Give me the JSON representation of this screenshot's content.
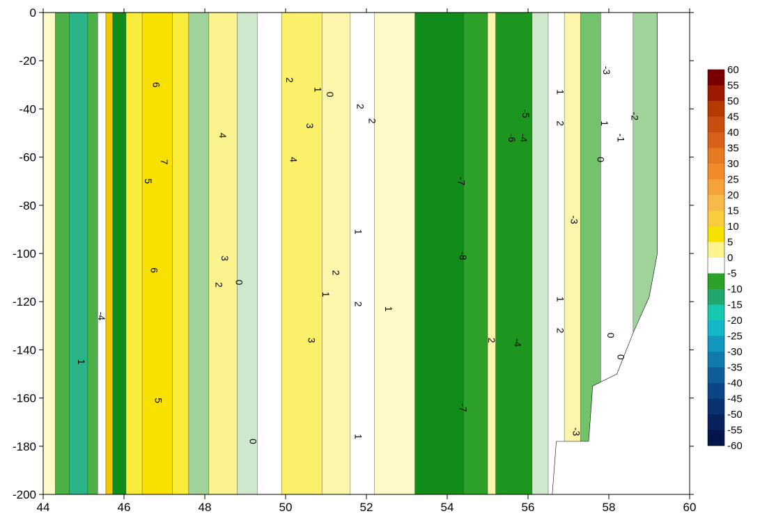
{
  "chart_data": {
    "type": "heatmap",
    "title": "",
    "xlabel": "",
    "ylabel": "",
    "xlim": [
      44,
      60
    ],
    "ylim": [
      -200,
      0
    ],
    "x_ticks": [
      44,
      46,
      48,
      50,
      52,
      54,
      56,
      58,
      60
    ],
    "y_ticks": [
      0,
      -20,
      -40,
      -60,
      -80,
      -100,
      -120,
      -140,
      -160,
      -180,
      -200
    ],
    "colorbar": {
      "levels": [
        60,
        55,
        50,
        45,
        40,
        35,
        30,
        25,
        20,
        15,
        10,
        5,
        0,
        -5,
        -10,
        -15,
        -20,
        -25,
        -30,
        -35,
        -40,
        -45,
        -50,
        -55,
        -60
      ],
      "range": [
        -60,
        60
      ]
    },
    "bands": [
      {
        "x0": 44.0,
        "x1": 44.3,
        "value": 1
      },
      {
        "x0": 44.3,
        "x1": 44.65,
        "value": -4
      },
      {
        "x0": 44.65,
        "x1": 45.1,
        "value": -10
      },
      {
        "x0": 45.1,
        "x1": 45.35,
        "value": -4
      },
      {
        "x0": 45.35,
        "x1": 45.55,
        "value": 0
      },
      {
        "x0": 45.55,
        "x1": 45.72,
        "value": 9
      },
      {
        "x0": 45.72,
        "x1": 46.05,
        "value": -7
      },
      {
        "x0": 46.05,
        "x1": 46.45,
        "value": 5
      },
      {
        "x0": 46.45,
        "x1": 47.2,
        "value": 7
      },
      {
        "x0": 47.2,
        "x1": 47.6,
        "value": 5
      },
      {
        "x0": 47.6,
        "x1": 48.1,
        "value": -2
      },
      {
        "x0": 48.1,
        "x1": 48.8,
        "value": 3
      },
      {
        "x0": 48.8,
        "x1": 49.3,
        "value": -1
      },
      {
        "x0": 49.3,
        "x1": 49.9,
        "value": 0
      },
      {
        "x0": 49.9,
        "x1": 50.9,
        "value": 4
      },
      {
        "x0": 50.9,
        "x1": 51.6,
        "value": 2
      },
      {
        "x0": 51.6,
        "x1": 52.2,
        "value": 0
      },
      {
        "x0": 52.2,
        "x1": 53.2,
        "value": 1
      },
      {
        "x0": 53.2,
        "x1": 54.4,
        "value": -7
      },
      {
        "x0": 54.4,
        "x1": 55.0,
        "value": -5
      },
      {
        "x0": 55.0,
        "x1": 55.2,
        "value": 2
      },
      {
        "x0": 55.2,
        "x1": 56.1,
        "value": -6
      },
      {
        "x0": 56.1,
        "x1": 56.5,
        "value": -1
      },
      {
        "x0": 56.5,
        "x1": 56.9,
        "value": 0
      },
      {
        "x0": 56.9,
        "x1": 57.3,
        "value": 2
      },
      {
        "x0": 57.3,
        "x1": 57.8,
        "value": -3
      },
      {
        "x0": 57.8,
        "x1": 58.6,
        "value": 0
      },
      {
        "x0": 58.6,
        "x1": 59.2,
        "value": -2
      }
    ],
    "annotations": [
      {
        "text": "-4",
        "x": 45.45,
        "y": -126
      },
      {
        "text": "6",
        "x": 46.8,
        "y": -30
      },
      {
        "text": "7",
        "x": 47.0,
        "y": -62
      },
      {
        "text": "5",
        "x": 46.6,
        "y": -70
      },
      {
        "text": "6",
        "x": 46.75,
        "y": -107
      },
      {
        "text": "5",
        "x": 46.85,
        "y": -161
      },
      {
        "text": "4",
        "x": 48.45,
        "y": -51
      },
      {
        "text": "3",
        "x": 48.5,
        "y": -102
      },
      {
        "text": "2",
        "x": 48.35,
        "y": -113
      },
      {
        "text": "0",
        "x": 48.85,
        "y": -112
      },
      {
        "text": "2",
        "x": 50.1,
        "y": -28
      },
      {
        "text": "3",
        "x": 50.6,
        "y": -47
      },
      {
        "text": "4",
        "x": 50.2,
        "y": -61
      },
      {
        "text": "3",
        "x": 50.65,
        "y": -136
      },
      {
        "text": "1",
        "x": 50.8,
        "y": -32
      },
      {
        "text": "0",
        "x": 51.1,
        "y": -34
      },
      {
        "text": "2",
        "x": 51.85,
        "y": -39
      },
      {
        "text": "2",
        "x": 52.15,
        "y": -45
      },
      {
        "text": "1",
        "x": 51.8,
        "y": -91
      },
      {
        "text": "2",
        "x": 51.25,
        "y": -108
      },
      {
        "text": "1",
        "x": 51.0,
        "y": -117
      },
      {
        "text": "2",
        "x": 51.8,
        "y": -121
      },
      {
        "text": "1",
        "x": 52.55,
        "y": -123
      },
      {
        "text": "1",
        "x": 51.8,
        "y": -176
      },
      {
        "text": "-7",
        "x": 54.35,
        "y": -70
      },
      {
        "text": "-8",
        "x": 54.4,
        "y": -101
      },
      {
        "text": "-7",
        "x": 54.4,
        "y": -164
      },
      {
        "text": "-5",
        "x": 55.95,
        "y": -42
      },
      {
        "text": "-6",
        "x": 55.6,
        "y": -52
      },
      {
        "text": "-4",
        "x": 55.9,
        "y": -52
      },
      {
        "text": "-4",
        "x": 55.75,
        "y": -137
      },
      {
        "text": "2",
        "x": 55.1,
        "y": -136
      },
      {
        "text": "1",
        "x": 56.8,
        "y": -33
      },
      {
        "text": "2",
        "x": 56.8,
        "y": -46
      },
      {
        "text": "1",
        "x": 56.8,
        "y": -119
      },
      {
        "text": "2",
        "x": 56.8,
        "y": -132
      },
      {
        "text": "-3",
        "x": 57.15,
        "y": -86
      },
      {
        "text": "0",
        "x": 57.8,
        "y": -61
      },
      {
        "text": "0",
        "x": 58.05,
        "y": -134
      },
      {
        "text": "0",
        "x": 58.3,
        "y": -143
      },
      {
        "text": "1",
        "x": 57.9,
        "y": -46
      },
      {
        "text": "-2",
        "x": 58.65,
        "y": -43
      },
      {
        "text": "-1",
        "x": 58.3,
        "y": -52
      },
      {
        "text": "-3",
        "x": 57.2,
        "y": -174
      },
      {
        "text": "0",
        "x": 49.2,
        "y": -178
      },
      {
        "text": "1",
        "x": 44.95,
        "y": -145
      },
      {
        "text": "-3",
        "x": 57.95,
        "y": -24
      }
    ]
  }
}
